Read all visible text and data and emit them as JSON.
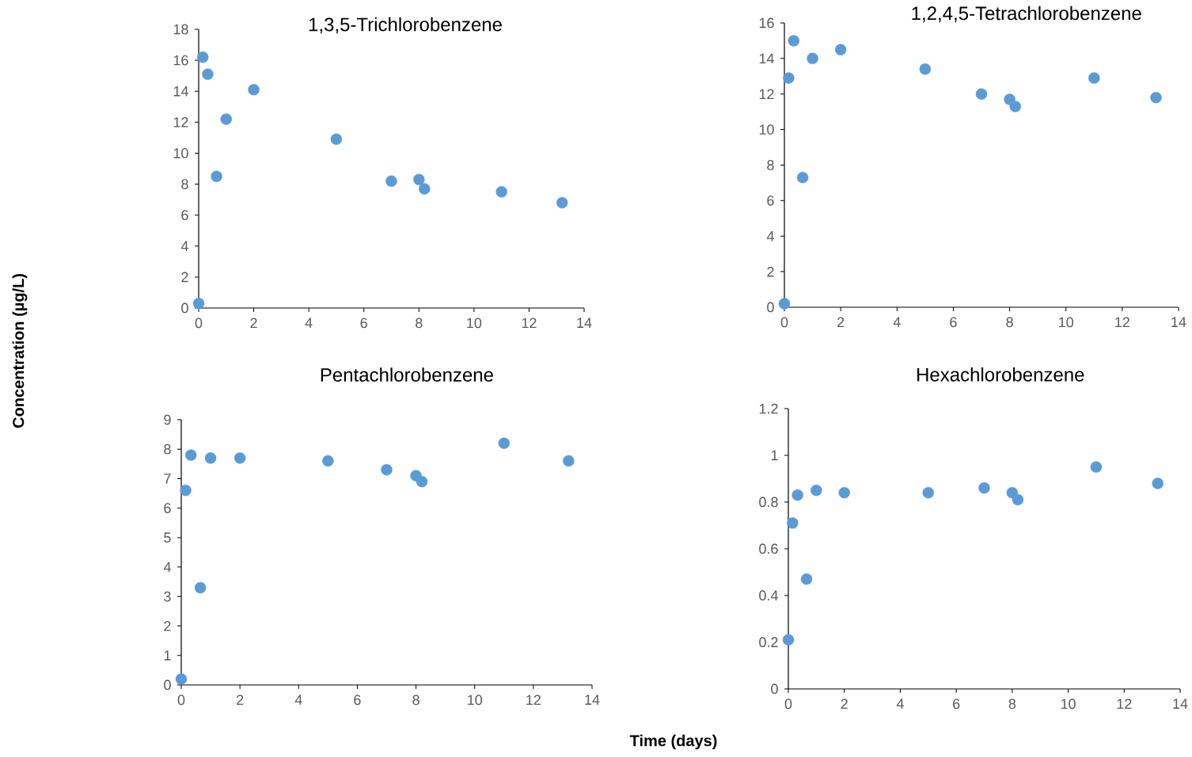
{
  "chart_data": [
    {
      "type": "scatter",
      "title": "1,3,5-Trichlorobenzene",
      "ylabel": "Concentration (µg/L)",
      "x": [
        0,
        0.15,
        0.33,
        0.65,
        1,
        2,
        5,
        7,
        8,
        8.2,
        11,
        13.2
      ],
      "values": [
        0.3,
        16.2,
        15.1,
        8.5,
        12.2,
        14.1,
        10.9,
        8.2,
        8.3,
        7.7,
        7.5,
        6.8
      ],
      "color": "#5b9bd5",
      "marker": "circle",
      "xlim": [
        0,
        14
      ],
      "xticks": [
        0,
        2,
        4,
        6,
        8,
        10,
        12,
        14
      ],
      "ylim": [
        0,
        18
      ],
      "yticks": [
        0,
        2,
        4,
        6,
        8,
        10,
        12,
        14,
        16,
        18
      ]
    },
    {
      "type": "scatter",
      "title": "1,2,4,5-Tetrachlorobenzene",
      "x": [
        0,
        0.15,
        0.33,
        0.65,
        1,
        2,
        5,
        7,
        8,
        8.2,
        11,
        13.2
      ],
      "values": [
        0.2,
        12.9,
        15.0,
        7.3,
        14.0,
        14.5,
        13.4,
        12.0,
        11.7,
        11.3,
        12.9,
        11.8
      ],
      "color": "#5b9bd5",
      "marker": "circle",
      "xlim": [
        0,
        14
      ],
      "xticks": [
        0,
        2,
        4,
        6,
        8,
        10,
        12,
        14
      ],
      "ylim": [
        0,
        16
      ],
      "yticks": [
        0,
        2,
        4,
        6,
        8,
        10,
        12,
        14,
        16
      ]
    },
    {
      "type": "scatter",
      "title": "Pentachlorobenzene",
      "x": [
        0,
        0.15,
        0.33,
        0.65,
        1,
        2,
        5,
        7,
        8,
        8.2,
        11,
        13.2
      ],
      "values": [
        0.2,
        6.6,
        7.8,
        3.3,
        7.7,
        7.7,
        7.6,
        7.3,
        7.1,
        6.9,
        8.2,
        7.6
      ],
      "color": "#5b9bd5",
      "marker": "circle",
      "xlim": [
        0,
        14
      ],
      "xticks": [
        0,
        2,
        4,
        6,
        8,
        10,
        12,
        14
      ],
      "ylim": [
        0,
        9
      ],
      "yticks": [
        0,
        1,
        2,
        3,
        4,
        5,
        6,
        7,
        8,
        9
      ]
    },
    {
      "type": "scatter",
      "title": "Hexachlorobenzene",
      "xlabel": "Time (days)",
      "x": [
        0,
        0.15,
        0.33,
        0.65,
        1,
        2,
        5,
        7,
        8,
        8.2,
        11,
        13.2
      ],
      "values": [
        0.21,
        0.71,
        0.83,
        0.47,
        0.85,
        0.84,
        0.84,
        0.86,
        0.84,
        0.81,
        0.95,
        0.88
      ],
      "color": "#5b9bd5",
      "marker": "circle",
      "xlim": [
        0,
        14
      ],
      "xticks": [
        0,
        2,
        4,
        6,
        8,
        10,
        12,
        14
      ],
      "ylim": [
        0,
        1.2
      ],
      "yticks": [
        0,
        0.2,
        0.4,
        0.6,
        0.8,
        1,
        1.2
      ]
    }
  ]
}
